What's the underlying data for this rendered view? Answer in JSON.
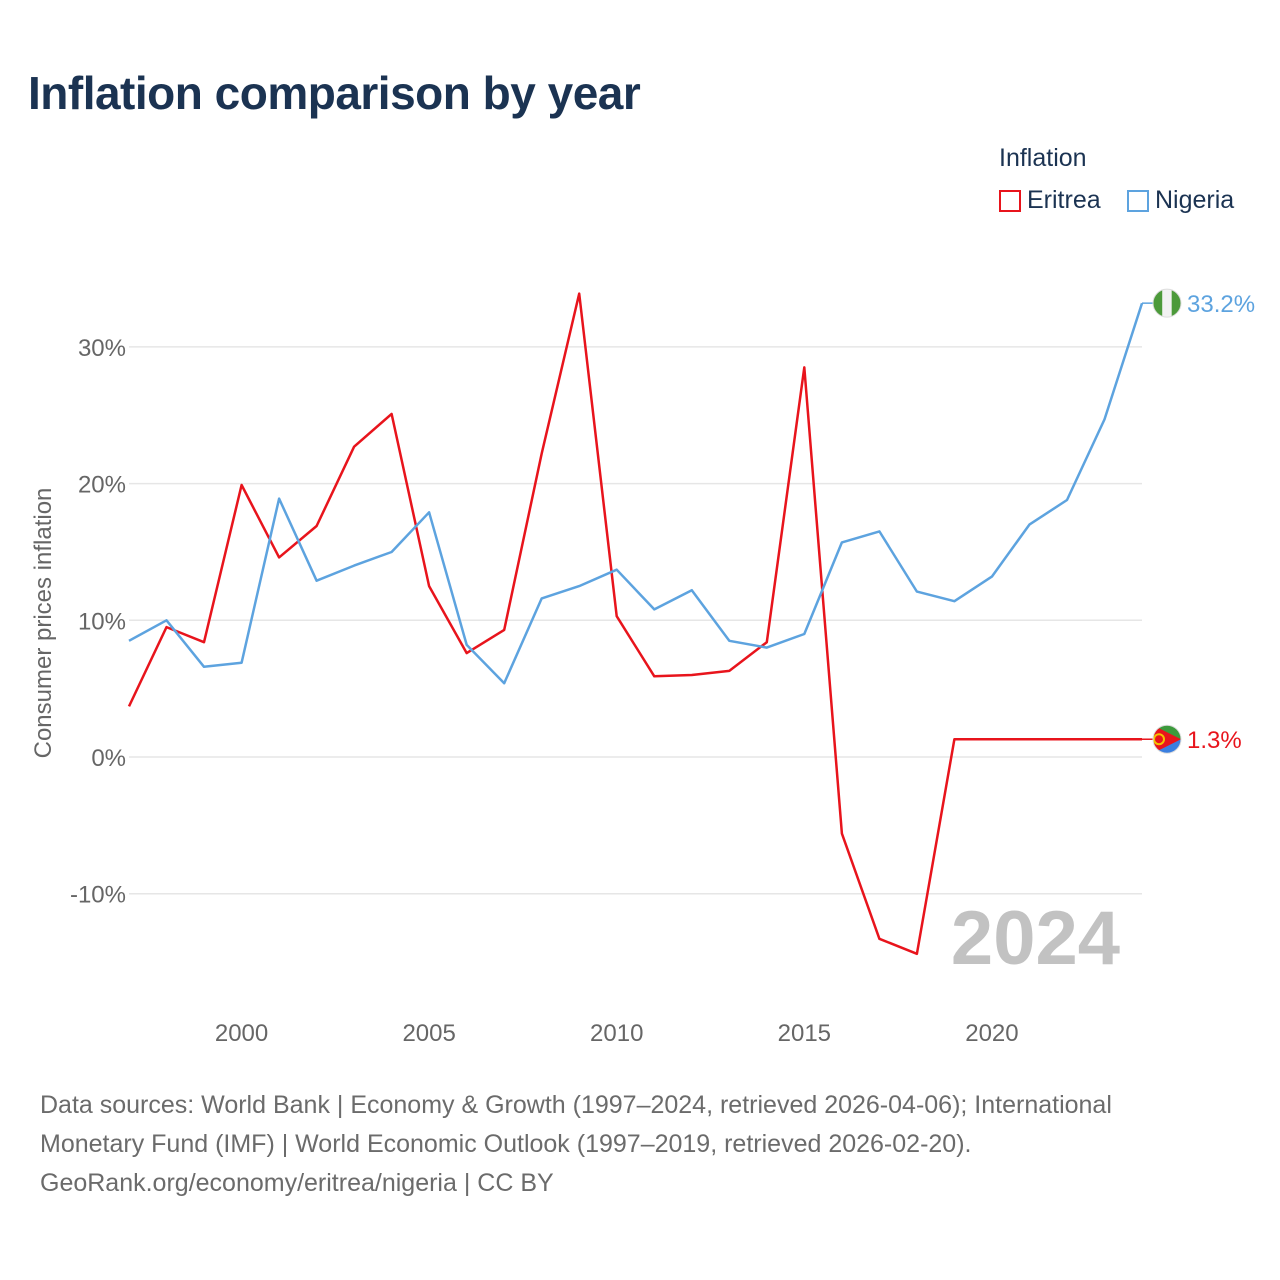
{
  "title": "Inflation comparison by year",
  "legend": {
    "title": "Inflation",
    "items": [
      {
        "label": "Eritrea",
        "color": "#e8141c"
      },
      {
        "label": "Nigeria",
        "color": "#5da3df"
      }
    ]
  },
  "chart_data": {
    "type": "line",
    "title": "Inflation comparison by year",
    "xlabel": "",
    "ylabel": "Consumer prices inflation",
    "xlim": [
      1997,
      2024
    ],
    "ylim": [
      -17,
      37
    ],
    "x_ticks": [
      2000,
      2005,
      2010,
      2015,
      2020
    ],
    "y_ticks": [
      -10,
      0,
      10,
      20,
      30
    ],
    "y_tick_labels": [
      "-10%",
      "0%",
      "10%",
      "20%",
      "30%"
    ],
    "grid": true,
    "watermark_year": "2024",
    "x": [
      1997,
      1998,
      1999,
      2000,
      2001,
      2002,
      2003,
      2004,
      2005,
      2006,
      2007,
      2008,
      2009,
      2010,
      2011,
      2012,
      2013,
      2014,
      2015,
      2016,
      2017,
      2018,
      2019,
      2020,
      2021,
      2022,
      2023,
      2024
    ],
    "series": [
      {
        "name": "Eritrea",
        "color": "#e8141c",
        "values": [
          3.7,
          9.5,
          8.4,
          19.9,
          14.6,
          16.9,
          22.7,
          25.1,
          12.5,
          7.6,
          9.3,
          22.2,
          33.9,
          10.3,
          5.9,
          6.0,
          6.3,
          8.4,
          28.5,
          -5.6,
          -13.3,
          -14.4,
          1.3,
          1.3,
          1.3,
          1.3,
          1.3,
          1.3
        ],
        "end_label": "1.3%"
      },
      {
        "name": "Nigeria",
        "color": "#5da3df",
        "values": [
          8.5,
          10.0,
          6.6,
          6.9,
          18.9,
          12.9,
          14.0,
          15.0,
          17.9,
          8.2,
          5.4,
          11.6,
          12.5,
          13.7,
          10.8,
          12.2,
          8.5,
          8.0,
          9.0,
          15.7,
          16.5,
          12.1,
          11.4,
          13.2,
          17.0,
          18.8,
          24.7,
          33.2
        ],
        "end_label": "33.2%"
      }
    ]
  },
  "footer": {
    "line1": "Data sources: World Bank | Economy & Growth (1997–2024, retrieved 2026-04-06); International",
    "line2": "Monetary Fund (IMF) | World Economic Outlook (1997–2019, retrieved 2026-02-20).",
    "line3": "GeoRank.org/economy/eritrea/nigeria | CC BY"
  }
}
